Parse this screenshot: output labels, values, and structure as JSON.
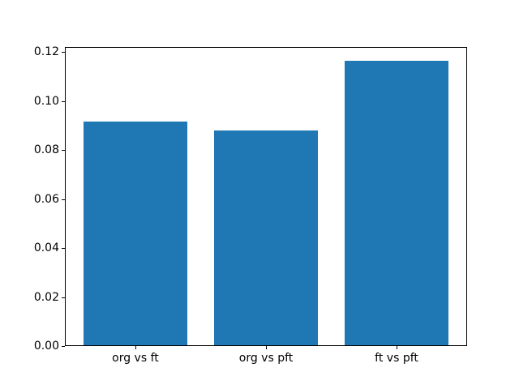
{
  "chart_data": {
    "type": "bar",
    "title": "",
    "xlabel": "",
    "ylabel": "",
    "categories": [
      "org vs ft",
      "org vs pft",
      "ft vs pft"
    ],
    "values": [
      0.0915,
      0.0878,
      0.1165
    ],
    "bar_color": "#1f77b4",
    "ylim": [
      0,
      0.122
    ],
    "yticks": [
      0.0,
      0.02,
      0.04,
      0.06,
      0.08,
      0.1,
      0.12
    ],
    "ytick_labels": [
      "0.00",
      "0.02",
      "0.04",
      "0.06",
      "0.08",
      "0.10",
      "0.12"
    ],
    "grid": false,
    "legend": "none",
    "spine_color": "#000000",
    "background_color": "#ffffff"
  }
}
